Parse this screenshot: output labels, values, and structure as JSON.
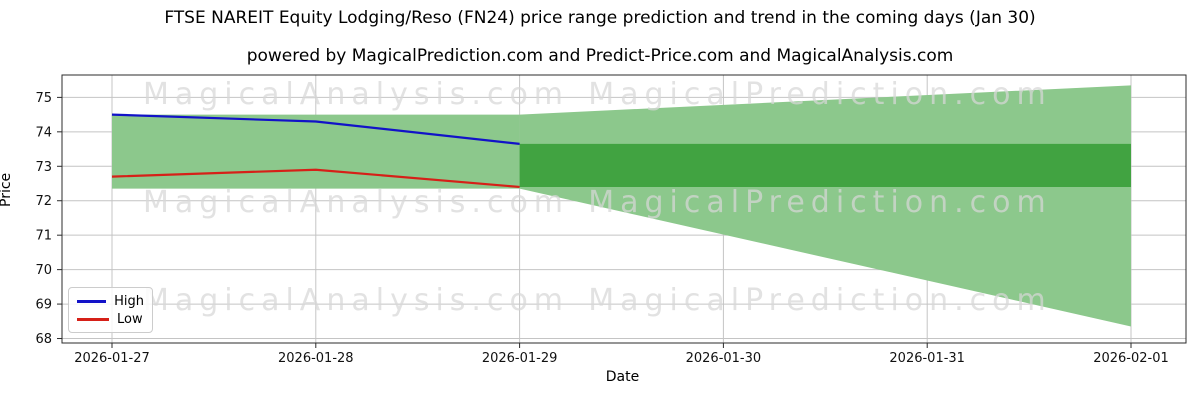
{
  "chart_data": {
    "type": "area",
    "title": "FTSE NAREIT Equity Lodging/Reso (FN24) price range prediction and trend in the coming days (Jan 30)",
    "subtitle": "powered by MagicalPrediction.com and Predict-Price.com and MagicalAnalysis.com",
    "xlabel": "Date",
    "ylabel": "Price",
    "x_tick_labels": [
      "2026-01-27",
      "2026-01-28",
      "2026-01-29",
      "2026-01-30",
      "2026-01-31",
      "2026-02-01"
    ],
    "y_tick_labels": [
      68,
      69,
      70,
      71,
      72,
      73,
      74,
      75
    ],
    "ylim": [
      67.87,
      75.65
    ],
    "grid": true,
    "series": [
      {
        "name": "High",
        "color": "#1212c8",
        "x": [
          0,
          1,
          2
        ],
        "values": [
          74.5,
          74.3,
          73.65
        ]
      },
      {
        "name": "Low",
        "color": "#d62018",
        "x": [
          0,
          1,
          2
        ],
        "values": [
          72.7,
          72.9,
          72.4
        ]
      }
    ],
    "bands": [
      {
        "name": "historical-range",
        "color": "#8cc88c",
        "x": [
          0,
          2
        ],
        "top": [
          74.5,
          74.5
        ],
        "bottom": [
          72.35,
          72.35
        ]
      },
      {
        "name": "forecast-range-fan",
        "color": "#8cc88c",
        "x": [
          2,
          5
        ],
        "top": [
          74.5,
          75.35
        ],
        "bottom": [
          72.35,
          68.35
        ]
      },
      {
        "name": "forecast-core-band",
        "color": "#41a341",
        "x": [
          2,
          5
        ],
        "top": [
          73.65,
          73.65
        ],
        "bottom": [
          72.4,
          72.4
        ]
      }
    ],
    "legend": {
      "position": "lower-left",
      "items": [
        {
          "label": "High",
          "color": "#1212c8"
        },
        {
          "label": "Low",
          "color": "#d62018"
        }
      ]
    },
    "watermarks": {
      "left_text": "MagicalAnalysis.com",
      "right_text": "MagicalPrediction.com"
    }
  },
  "style_colors": {
    "grid": "#c4c4c4",
    "spine": "#2b2b2b",
    "tick_label": "#111111",
    "watermark": "rgba(215,215,215,0.72)"
  }
}
